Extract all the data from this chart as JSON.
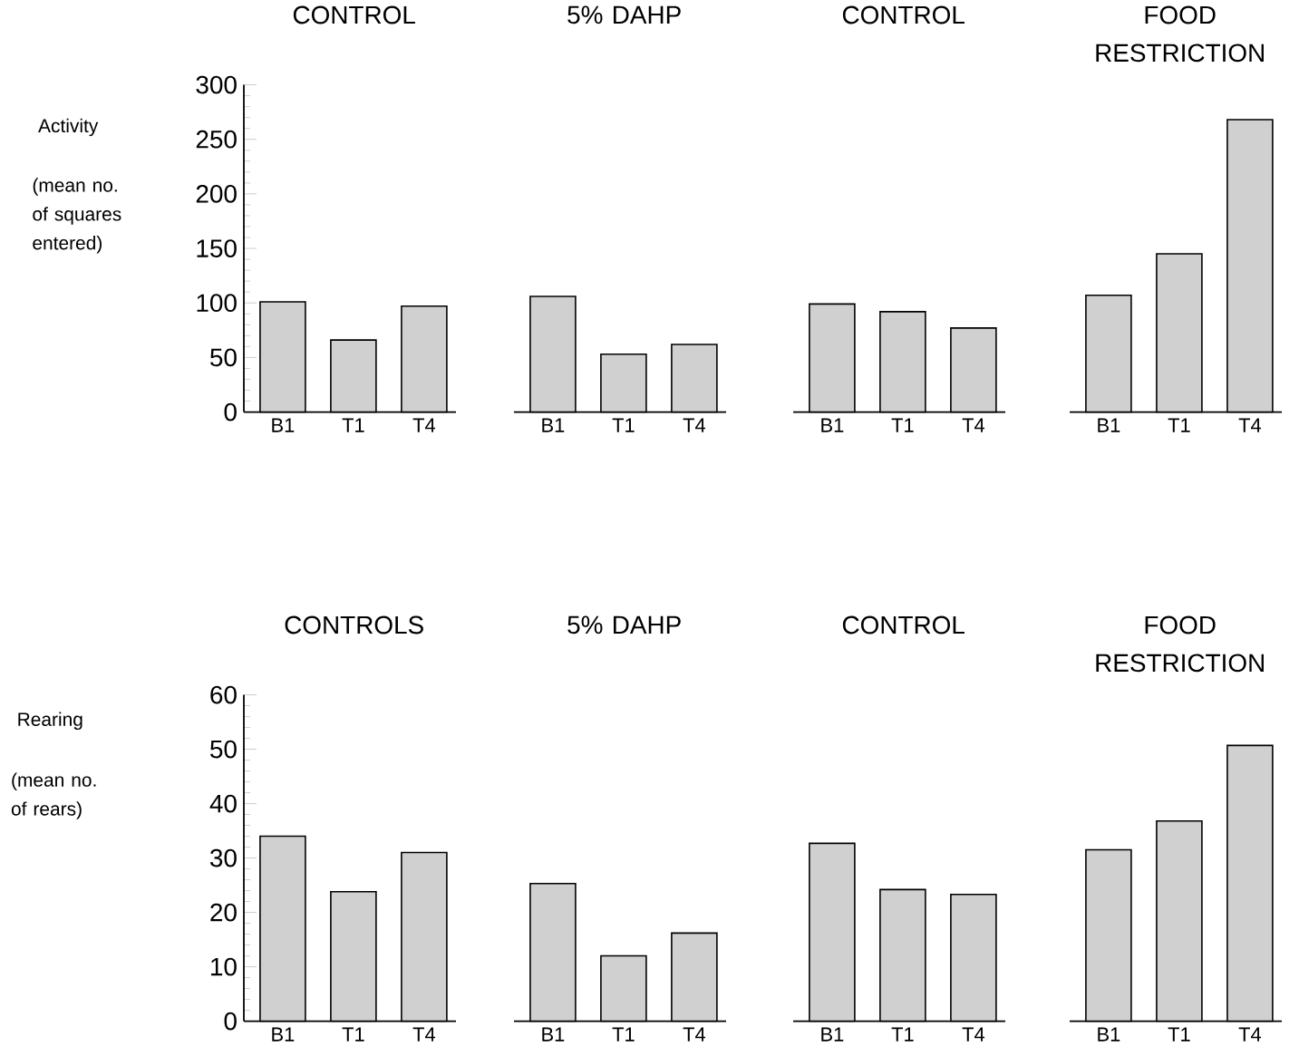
{
  "chart_data": [
    {
      "type": "bar",
      "title": "CONTROL",
      "ylabel": "Activity",
      "annotations": [
        "(mean no. of squares entered)"
      ],
      "categories": [
        "B1",
        "T1",
        "T4"
      ],
      "values": [
        101,
        66,
        97
      ],
      "color": "#d0d0d0",
      "ylim": [
        0,
        300
      ],
      "yticks": [
        0,
        50,
        100,
        150,
        200,
        250,
        300
      ]
    },
    {
      "type": "bar",
      "title": "5% DAHP",
      "categories": [
        "B1",
        "T1",
        "T4"
      ],
      "values": [
        106,
        53,
        62
      ],
      "color": "#d0d0d0",
      "ylim": [
        0,
        300
      ],
      "tick_labels": "x"
    },
    {
      "type": "bar",
      "title": "CONTROL",
      "categories": [
        "B1",
        "T1",
        "T4"
      ],
      "values": [
        99,
        92,
        77
      ],
      "color": "#d0d0d0",
      "ylim": [
        0,
        300
      ],
      "tick_labels": "x"
    },
    {
      "type": "bar",
      "title": "FOOD RESTRICTION",
      "categories": [
        "B1",
        "T1",
        "T4"
      ],
      "values": [
        107,
        145,
        268
      ],
      "color": "#d0d0d0",
      "ylim": [
        0,
        300
      ],
      "tick_labels": "x"
    },
    {
      "type": "bar",
      "title": "CONTROLS",
      "ylabel": "Rearing",
      "annotations": [
        "(mean no. of rears)"
      ],
      "categories": [
        "B1",
        "T1",
        "T4"
      ],
      "values": [
        34,
        23.8,
        31
      ],
      "color": "#d0d0d0",
      "ylim": [
        0,
        60
      ],
      "yticks": [
        0,
        10,
        20,
        30,
        40,
        50,
        60
      ]
    },
    {
      "type": "bar",
      "title": "5% DAHP",
      "categories": [
        "B1",
        "T1",
        "T4"
      ],
      "values": [
        25.3,
        12,
        16.2
      ],
      "color": "#d0d0d0",
      "ylim": [
        0,
        60
      ],
      "tick_labels": "x"
    },
    {
      "type": "bar",
      "title": "CONTROL",
      "categories": [
        "B1",
        "T1",
        "T4"
      ],
      "values": [
        32.7,
        24.2,
        23.3
      ],
      "color": "#d0d0d0",
      "ylim": [
        0,
        60
      ],
      "tick_labels": "x"
    },
    {
      "type": "bar",
      "title": "FOOD RESTRICTION",
      "categories": [
        "B1",
        "T1",
        "T4"
      ],
      "values": [
        31.5,
        36.8,
        50.7
      ],
      "color": "#d0d0d0",
      "ylim": [
        0,
        60
      ],
      "tick_labels": "x"
    }
  ]
}
